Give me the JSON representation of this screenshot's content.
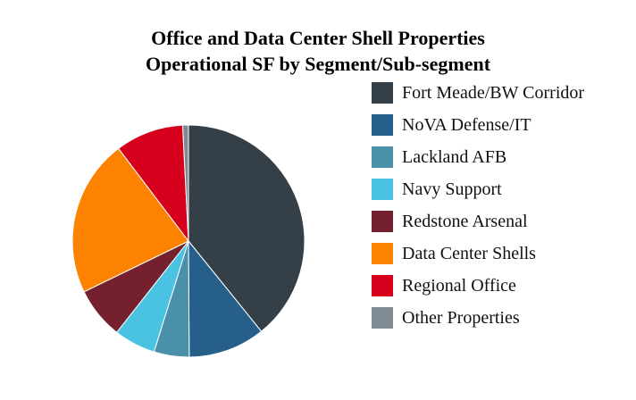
{
  "chart_data": {
    "type": "pie",
    "title_line1": "Office and Data Center Shell Properties",
    "title_line2": "Operational SF by Segment/Sub-segment",
    "series": [
      {
        "name": "Fort Meade/BW Corridor",
        "value": 39.2,
        "color": "#343f48"
      },
      {
        "name": "NoVA Defense/IT",
        "value": 10.7,
        "color": "#255f8a"
      },
      {
        "name": "Lackland AFB",
        "value": 4.9,
        "color": "#4a90a9"
      },
      {
        "name": "Navy Support",
        "value": 5.8,
        "color": "#4ac3e2"
      },
      {
        "name": "Redstone Arsenal",
        "value": 7.2,
        "color": "#74202f"
      },
      {
        "name": "Data Center Shells",
        "value": 21.9,
        "color": "#fd8200"
      },
      {
        "name": "Regional Office",
        "value": 9.5,
        "color": "#d6001c"
      },
      {
        "name": "Other Properties",
        "value": 0.8,
        "color": "#808a92"
      }
    ],
    "start_angle_deg": 0,
    "direction": "clockwise",
    "legend_position": "right"
  }
}
